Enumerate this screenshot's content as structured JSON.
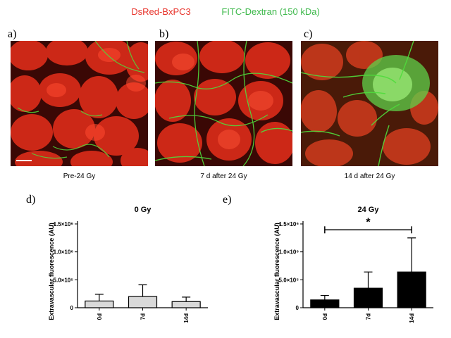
{
  "header": {
    "label_red": "DsRed-BxPC3",
    "label_green": "FITC-Dextran (150 kDa)"
  },
  "colors": {
    "red_label": "#e8322a",
    "green_label": "#3cb84a",
    "tissue_red": "#d42a18",
    "vessel_green": "#4fdc3c"
  },
  "panels": [
    {
      "letter": "a)",
      "caption": "Pre-24 Gy"
    },
    {
      "letter": "b)",
      "caption": "7 d after 24 Gy"
    },
    {
      "letter": "c)",
      "caption": "14 d after 24 Gy"
    },
    {
      "letter": "d)"
    },
    {
      "letter": "e)"
    }
  ],
  "chart_data": [
    {
      "type": "bar",
      "title": "0 Gy",
      "ylabel": "Extravascular fluorescence (AU)",
      "categories": [
        "0d",
        "7d",
        "14d"
      ],
      "values": [
        120000,
        200000,
        110000
      ],
      "errors": [
        120000,
        210000,
        80000
      ],
      "ylim": [
        0,
        1500000
      ],
      "yticks": [
        "0",
        "5.0×10⁵",
        "1.0×10⁶",
        "1.5×10⁶"
      ],
      "bar_color": "#d9d9d9"
    },
    {
      "type": "bar",
      "title": "24 Gy",
      "ylabel": "Extravascular fluorescence (AU)",
      "categories": [
        "0d",
        "7d",
        "14d"
      ],
      "values": [
        140000,
        350000,
        640000
      ],
      "errors": [
        80000,
        290000,
        610000
      ],
      "ylim": [
        0,
        1500000
      ],
      "yticks": [
        "0",
        "5.0×10⁵",
        "1.0×10⁶",
        "1.5×10⁶"
      ],
      "bar_color": "#000000",
      "significance": "*"
    }
  ]
}
